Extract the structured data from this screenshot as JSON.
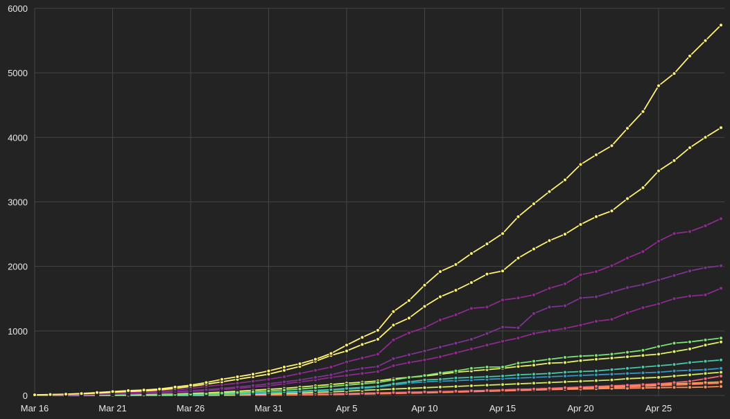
{
  "chart_data": {
    "type": "line",
    "title": "",
    "xlabel": "",
    "ylabel": "",
    "grid": true,
    "legend": "none",
    "x": [
      "Mar 16",
      "Mar 17",
      "Mar 18",
      "Mar 19",
      "Mar 20",
      "Mar 21",
      "Mar 22",
      "Mar 23",
      "Mar 24",
      "Mar 25",
      "Mar 26",
      "Mar 27",
      "Mar 28",
      "Mar 29",
      "Mar 30",
      "Mar 31",
      "Apr 1",
      "Apr 2",
      "Apr 3",
      "Apr 4",
      "Apr 5",
      "Apr 6",
      "Apr 7",
      "Apr 8",
      "Apr 9",
      "Apr 10",
      "Apr 11",
      "Apr 12",
      "Apr 13",
      "Apr 14",
      "Apr 15",
      "Apr 16",
      "Apr 17",
      "Apr 18",
      "Apr 19",
      "Apr 20",
      "Apr 21",
      "Apr 22",
      "Apr 23",
      "Apr 24",
      "Apr 25",
      "Apr 26",
      "Apr 27",
      "Apr 28",
      "Apr 29"
    ],
    "xtick_labels": [
      "Mar 16",
      "Mar 21",
      "Mar 26",
      "Mar 31",
      "Apr 5",
      "Apr 10",
      "Apr 15",
      "Apr 20",
      "Apr 25"
    ],
    "yticks": [
      0,
      1000,
      2000,
      3000,
      4000,
      5000,
      6000
    ],
    "ylim": [
      0,
      6000
    ],
    "series": [
      {
        "color": "#fef372",
        "values": [
          10,
          15,
          20,
          30,
          45,
          60,
          75,
          85,
          100,
          130,
          160,
          200,
          250,
          290,
          330,
          380,
          440,
          490,
          560,
          650,
          780,
          900,
          1010,
          1300,
          1470,
          1710,
          1920,
          2030,
          2200,
          2350,
          2510,
          2770,
          2970,
          3160,
          3340,
          3580,
          3730,
          3870,
          4140,
          4400,
          4800,
          4990,
          5260,
          5500,
          5740
        ]
      },
      {
        "color": "#fef372",
        "values": [
          8,
          12,
          18,
          25,
          35,
          50,
          60,
          70,
          85,
          110,
          140,
          175,
          210,
          250,
          290,
          330,
          390,
          450,
          530,
          620,
          690,
          790,
          870,
          1090,
          1200,
          1380,
          1530,
          1630,
          1750,
          1880,
          1930,
          2130,
          2270,
          2400,
          2500,
          2650,
          2770,
          2860,
          3050,
          3220,
          3480,
          3640,
          3840,
          4000,
          4150
        ]
      },
      {
        "color": "#8e2a8e",
        "values": [
          5,
          8,
          12,
          18,
          25,
          35,
          45,
          55,
          65,
          85,
          110,
          140,
          165,
          190,
          220,
          250,
          290,
          340,
          390,
          440,
          520,
          580,
          640,
          860,
          970,
          1050,
          1170,
          1250,
          1350,
          1370,
          1480,
          1510,
          1560,
          1660,
          1730,
          1870,
          1920,
          2010,
          2130,
          2230,
          2390,
          2510,
          2540,
          2630,
          2740
        ]
      },
      {
        "color": "#7b3490",
        "values": [
          3,
          5,
          8,
          12,
          18,
          25,
          32,
          40,
          48,
          60,
          75,
          90,
          110,
          130,
          155,
          180,
          210,
          240,
          280,
          320,
          380,
          420,
          450,
          570,
          630,
          690,
          750,
          810,
          870,
          960,
          1060,
          1050,
          1270,
          1370,
          1390,
          1510,
          1530,
          1600,
          1670,
          1720,
          1790,
          1860,
          1930,
          1980,
          2010
        ]
      },
      {
        "color": "#8e2a8e",
        "values": [
          2,
          4,
          6,
          10,
          14,
          20,
          26,
          32,
          40,
          50,
          60,
          75,
          90,
          110,
          130,
          150,
          180,
          210,
          240,
          280,
          310,
          340,
          370,
          460,
          510,
          550,
          600,
          660,
          720,
          780,
          840,
          890,
          960,
          1000,
          1040,
          1090,
          1150,
          1180,
          1280,
          1360,
          1420,
          1500,
          1540,
          1560,
          1660
        ]
      },
      {
        "color": "#7de275",
        "values": [
          0,
          0,
          0,
          1,
          2,
          3,
          5,
          8,
          12,
          16,
          20,
          28,
          36,
          46,
          58,
          70,
          85,
          100,
          120,
          140,
          160,
          180,
          200,
          240,
          280,
          310,
          350,
          380,
          420,
          440,
          440,
          500,
          530,
          560,
          590,
          610,
          620,
          640,
          670,
          700,
          760,
          810,
          830,
          860,
          890
        ]
      },
      {
        "color": "#e6f36a",
        "values": [
          0,
          0,
          1,
          2,
          3,
          5,
          8,
          12,
          16,
          22,
          30,
          40,
          52,
          66,
          80,
          95,
          110,
          130,
          150,
          170,
          190,
          205,
          225,
          260,
          280,
          300,
          330,
          360,
          380,
          400,
          420,
          450,
          470,
          500,
          510,
          540,
          560,
          580,
          600,
          620,
          640,
          680,
          720,
          780,
          830
        ]
      },
      {
        "color": "#48c9a8",
        "values": [
          0,
          0,
          0,
          0,
          1,
          2,
          3,
          5,
          8,
          10,
          14,
          18,
          24,
          30,
          38,
          46,
          56,
          66,
          78,
          90,
          110,
          125,
          140,
          180,
          210,
          240,
          250,
          270,
          280,
          290,
          300,
          320,
          330,
          340,
          360,
          370,
          380,
          400,
          420,
          440,
          460,
          480,
          510,
          530,
          550
        ]
      },
      {
        "color": "#3399c2",
        "values": [
          0,
          0,
          0,
          0,
          0,
          1,
          2,
          3,
          5,
          7,
          10,
          14,
          18,
          24,
          30,
          38,
          46,
          56,
          68,
          80,
          95,
          110,
          130,
          160,
          190,
          210,
          220,
          230,
          240,
          250,
          260,
          270,
          280,
          290,
          300,
          310,
          320,
          330,
          340,
          350,
          360,
          380,
          390,
          400,
          420
        ]
      },
      {
        "color": "#d6ec62",
        "values": [
          0,
          0,
          0,
          0,
          0,
          0,
          1,
          2,
          3,
          4,
          6,
          8,
          10,
          14,
          18,
          24,
          30,
          38,
          46,
          56,
          66,
          78,
          90,
          100,
          110,
          120,
          130,
          140,
          150,
          160,
          170,
          180,
          190,
          200,
          210,
          220,
          230,
          240,
          260,
          270,
          280,
          300,
          320,
          340,
          360
        ]
      },
      {
        "color": "#f86878",
        "values": [
          0,
          0,
          0,
          0,
          0,
          0,
          0,
          1,
          1,
          2,
          3,
          4,
          5,
          7,
          9,
          12,
          15,
          18,
          22,
          26,
          30,
          35,
          40,
          45,
          50,
          55,
          60,
          66,
          72,
          78,
          85,
          92,
          100,
          110,
          120,
          130,
          140,
          150,
          160,
          170,
          180,
          200,
          220,
          260,
          300
        ]
      },
      {
        "color": "#fb8f5e",
        "values": [
          0,
          0,
          0,
          0,
          0,
          0,
          0,
          0,
          1,
          1,
          2,
          3,
          4,
          5,
          7,
          9,
          11,
          14,
          17,
          20,
          24,
          28,
          32,
          36,
          40,
          45,
          50,
          55,
          60,
          66,
          72,
          78,
          84,
          90,
          96,
          100,
          104,
          108,
          112,
          116,
          120,
          124,
          126,
          130,
          140
        ]
      },
      {
        "color": "#ffa45a",
        "values": [
          0,
          0,
          0,
          0,
          0,
          0,
          0,
          0,
          0,
          1,
          1,
          2,
          3,
          4,
          6,
          8,
          10,
          12,
          15,
          18,
          22,
          26,
          30,
          36,
          42,
          48,
          55,
          62,
          70,
          78,
          86,
          94,
          100,
          108,
          116,
          124,
          132,
          140,
          150,
          160,
          170,
          180,
          190,
          200,
          210
        ]
      },
      {
        "color": "#ff7a60",
        "values": [
          0,
          0,
          0,
          0,
          0,
          0,
          0,
          0,
          0,
          0,
          1,
          1,
          2,
          3,
          4,
          5,
          7,
          9,
          12,
          15,
          18,
          22,
          26,
          30,
          35,
          40,
          46,
          52,
          58,
          64,
          70,
          78,
          86,
          94,
          100,
          108,
          116,
          124,
          132,
          140,
          150,
          160,
          170,
          180,
          190
        ]
      }
    ]
  }
}
